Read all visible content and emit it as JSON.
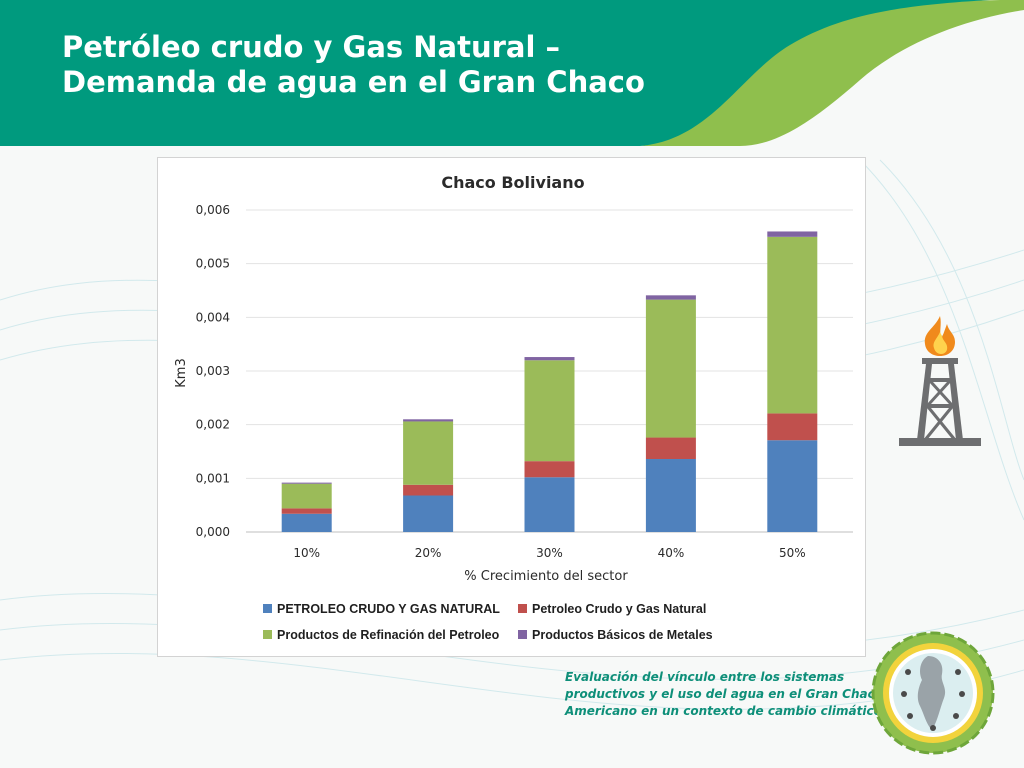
{
  "slide": {
    "title_line1": "Petróleo crudo y Gas Natural –",
    "title_line2": "Demanda de agua en el Gran Chaco",
    "caption_line1": "Evaluación del vínculo entre los sistemas",
    "caption_line2": "productivos y el uso del agua en el Gran Chaco",
    "caption_line3": "Americano en un contexto de cambio climático"
  },
  "colors": {
    "header_teal": "#009a7e",
    "header_green": "#8fbf4d",
    "caption_teal": "#0e8f79",
    "flame_orange": "#f08a1c",
    "rig_gray": "#6d6e70"
  },
  "icons": {
    "rig": "oil-rig-with-flame-icon",
    "logo": "gran-chaco-project-logo"
  },
  "chart_data": {
    "type": "bar",
    "stacked": true,
    "title": "Chaco Boliviano",
    "xlabel": "% Crecimiento del sector",
    "ylabel": "Km3",
    "ylim": [
      0,
      0.006
    ],
    "yticks": [
      "0,000",
      "0,001",
      "0,002",
      "0,003",
      "0,004",
      "0,005",
      "0,006"
    ],
    "grid": true,
    "legend_position": "bottom",
    "categories": [
      "10%",
      "20%",
      "30%",
      "40%",
      "50%"
    ],
    "series": [
      {
        "name": "PETROLEO CRUDO Y GAS NATURAL",
        "color": "#4f81bd",
        "values": [
          0.00034,
          0.00068,
          0.00102,
          0.00136,
          0.00171
        ]
      },
      {
        "name": "Petroleo Crudo y Gas Natural",
        "color": "#c0504d",
        "values": [
          0.0001,
          0.0002,
          0.0003,
          0.0004,
          0.0005
        ]
      },
      {
        "name": "Productos de Refinación del Petroleo",
        "color": "#9bbb59",
        "values": [
          0.00046,
          0.00118,
          0.00188,
          0.00257,
          0.00329
        ]
      },
      {
        "name": "Productos Básicos de Metales",
        "color": "#8064a2",
        "values": [
          2e-05,
          4e-05,
          6e-05,
          8e-05,
          0.0001
        ]
      }
    ]
  }
}
